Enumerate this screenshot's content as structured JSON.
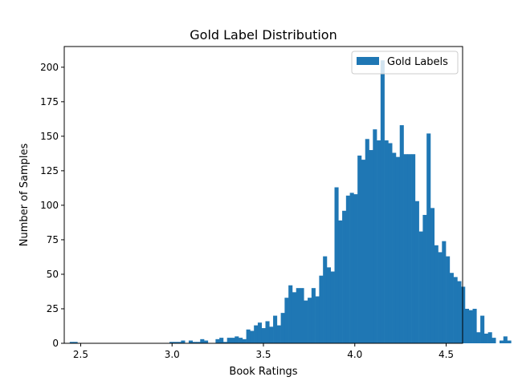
{
  "chart_data": {
    "type": "bar",
    "histogram": true,
    "title": "Gold Label Distribution",
    "xlabel": "Book Ratings",
    "ylabel": "Number of Samples",
    "xlim": [
      2.41,
      4.59
    ],
    "ylim": [
      0,
      215
    ],
    "xticks": [
      2.5,
      3.0,
      3.5,
      4.0,
      4.5
    ],
    "xtick_labels": [
      "2.5",
      "3.0",
      "3.5",
      "4.0",
      "4.5"
    ],
    "yticks": [
      0,
      25,
      50,
      75,
      100,
      125,
      150,
      175,
      200
    ],
    "ytick_labels": [
      "0",
      "25",
      "50",
      "75",
      "100",
      "125",
      "150",
      "175",
      "200"
    ],
    "grid": false,
    "legend_position": "top-right",
    "bin_start": 2.44,
    "bin_width": 0.021,
    "series": [
      {
        "name": "Gold Labels",
        "color": "#1f77b4",
        "values": [
          1,
          1,
          0,
          0,
          0,
          0,
          0,
          0,
          0,
          0,
          0,
          0,
          0,
          0,
          0,
          0,
          0,
          0,
          0,
          0,
          0,
          0,
          0,
          0,
          0,
          0,
          1,
          1,
          1,
          2,
          0,
          2,
          1,
          1,
          3,
          2,
          0,
          0,
          3,
          4,
          1,
          4,
          4,
          5,
          4,
          3,
          10,
          9,
          13,
          15,
          11,
          16,
          12,
          20,
          13,
          22,
          33,
          42,
          37,
          40,
          40,
          31,
          33,
          40,
          34,
          49,
          63,
          55,
          52,
          113,
          89,
          96,
          107,
          109,
          108,
          136,
          133,
          148,
          140,
          155,
          147,
          205,
          147,
          145,
          138,
          135,
          158,
          137,
          137,
          137,
          103,
          81,
          93,
          152,
          98,
          71,
          66,
          74,
          63,
          51,
          48,
          45,
          41,
          25,
          24,
          25,
          8,
          20,
          7,
          8,
          4,
          0,
          2,
          5,
          2,
          0,
          2
        ]
      }
    ]
  }
}
